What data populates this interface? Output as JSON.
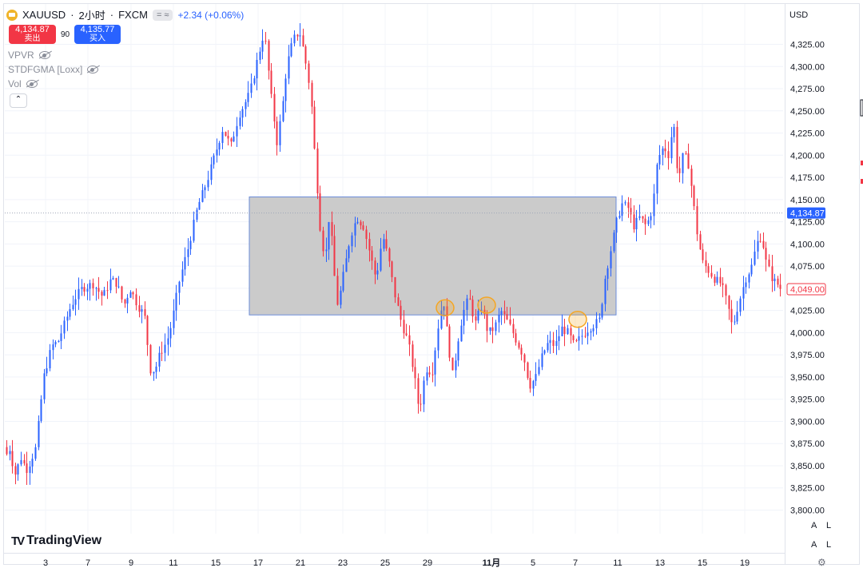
{
  "header": {
    "symbol": "XAUUSD",
    "separator": "·",
    "interval": "2小时",
    "source": "FXCM",
    "market_status": "= ≈",
    "change": "+2.34 (+0.06%)"
  },
  "trade": {
    "sell_price": "4,134.87",
    "sell_label": "卖出",
    "spread": "90",
    "buy_price": "4,135.77",
    "buy_label": "买入"
  },
  "indicators": [
    {
      "name": "VPVR"
    },
    {
      "name": "STDFGMA [Loxx]"
    },
    {
      "name": "Vol"
    }
  ],
  "currency": "USD",
  "logo_text": "TradingView",
  "logo_mark": "TV",
  "axis_buttons": {
    "auto": "A",
    "log": "L"
  },
  "colors": {
    "up": "#2962ff",
    "down": "#f23645",
    "current_price": "#2962ff",
    "marker": "#f5a623",
    "zone": "#bdbdbd"
  },
  "chart_data": {
    "type": "candlestick",
    "title": "XAUUSD · 2小时 · FXCM",
    "ylim": [
      3780,
      4345
    ],
    "y_ticks": [
      3800,
      3825,
      3850,
      3875,
      3900,
      3925,
      3950,
      3975,
      4000,
      4025,
      4050,
      4075,
      4100,
      4125,
      4150,
      4175,
      4200,
      4225,
      4250,
      4275,
      4300,
      4325
    ],
    "y_tick_labels": [
      "3,800.00",
      "3,825.00",
      "3,850.00",
      "3,875.00",
      "3,900.00",
      "3,925.00",
      "3,950.00",
      "3,975.00",
      "4,000.00",
      "4,025.00",
      "4,050.00",
      "4,075.00",
      "4,100.00",
      "4,125.00",
      "4,150.00",
      "4,175.00",
      "4,200.00",
      "4,225.00",
      "4,250.00",
      "4,275.00",
      "4,300.00",
      "4,325.00"
    ],
    "x_tick_labels": [
      "3",
      "7",
      "9",
      "11",
      "15",
      "17",
      "21",
      "23",
      "25",
      "29",
      "11月",
      "5",
      "7",
      "11",
      "13",
      "15",
      "19"
    ],
    "x_tick_bold": [
      false,
      false,
      false,
      false,
      false,
      false,
      false,
      false,
      false,
      false,
      true,
      false,
      false,
      false,
      false,
      false,
      false
    ],
    "price_path": [
      [
        0,
        3840
      ],
      [
        6,
        3882
      ],
      [
        10,
        3860
      ],
      [
        15,
        3870
      ],
      [
        22,
        3840
      ],
      [
        30,
        3860
      ],
      [
        36,
        3845
      ],
      [
        40,
        3852
      ],
      [
        48,
        3870
      ],
      [
        58,
        3950
      ],
      [
        68,
        3985
      ],
      [
        76,
        3990
      ],
      [
        86,
        4015
      ],
      [
        92,
        4030
      ],
      [
        98,
        4040
      ],
      [
        106,
        4050
      ],
      [
        120,
        4055
      ],
      [
        132,
        4040
      ],
      [
        142,
        4060
      ],
      [
        150,
        4055
      ],
      [
        158,
        4030
      ],
      [
        166,
        4050
      ],
      [
        176,
        4030
      ],
      [
        184,
        4020
      ],
      [
        192,
        3955
      ],
      [
        198,
        3960
      ],
      [
        204,
        3978
      ],
      [
        212,
        3990
      ],
      [
        218,
        4010
      ],
      [
        228,
        4060
      ],
      [
        240,
        4100
      ],
      [
        250,
        4140
      ],
      [
        262,
        4170
      ],
      [
        272,
        4200
      ],
      [
        282,
        4230
      ],
      [
        292,
        4210
      ],
      [
        302,
        4245
      ],
      [
        316,
        4270
      ],
      [
        326,
        4310
      ],
      [
        334,
        4340
      ],
      [
        342,
        4270
      ],
      [
        350,
        4215
      ],
      [
        356,
        4250
      ],
      [
        362,
        4300
      ],
      [
        370,
        4330
      ],
      [
        378,
        4340
      ],
      [
        384,
        4315
      ],
      [
        392,
        4270
      ],
      [
        398,
        4190
      ],
      [
        404,
        4120
      ],
      [
        410,
        4080
      ],
      [
        416,
        4140
      ],
      [
        420,
        4080
      ],
      [
        426,
        4030
      ],
      [
        434,
        4070
      ],
      [
        442,
        4110
      ],
      [
        450,
        4130
      ],
      [
        458,
        4120
      ],
      [
        466,
        4090
      ],
      [
        474,
        4060
      ],
      [
        482,
        4110
      ],
      [
        490,
        4080
      ],
      [
        498,
        4040
      ],
      [
        506,
        4010
      ],
      [
        514,
        3990
      ],
      [
        522,
        3950
      ],
      [
        528,
        3910
      ],
      [
        536,
        3960
      ],
      [
        544,
        3955
      ],
      [
        552,
        4010
      ],
      [
        558,
        4040
      ],
      [
        564,
        3990
      ],
      [
        570,
        3950
      ],
      [
        576,
        3990
      ],
      [
        582,
        4020
      ],
      [
        590,
        4040
      ],
      [
        598,
        4010
      ],
      [
        606,
        4030
      ],
      [
        614,
        4000
      ],
      [
        622,
        4005
      ],
      [
        630,
        4025
      ],
      [
        640,
        4010
      ],
      [
        650,
        3990
      ],
      [
        658,
        3975
      ],
      [
        666,
        3940
      ],
      [
        674,
        3950
      ],
      [
        682,
        3975
      ],
      [
        690,
        3990
      ],
      [
        698,
        3985
      ],
      [
        706,
        4005
      ],
      [
        714,
        4000
      ],
      [
        722,
        3985
      ],
      [
        730,
        3995
      ],
      [
        740,
        4005
      ],
      [
        748,
        4010
      ],
      [
        754,
        4015
      ],
      [
        760,
        4060
      ],
      [
        768,
        4095
      ],
      [
        776,
        4130
      ],
      [
        782,
        4145
      ],
      [
        790,
        4140
      ],
      [
        796,
        4120
      ],
      [
        804,
        4130
      ],
      [
        812,
        4120
      ],
      [
        820,
        4140
      ],
      [
        826,
        4195
      ],
      [
        834,
        4210
      ],
      [
        840,
        4200
      ],
      [
        846,
        4240
      ],
      [
        852,
        4170
      ],
      [
        858,
        4200
      ],
      [
        864,
        4195
      ],
      [
        870,
        4155
      ],
      [
        876,
        4110
      ],
      [
        882,
        4080
      ],
      [
        890,
        4070
      ],
      [
        898,
        4060
      ],
      [
        906,
        4055
      ],
      [
        914,
        4030
      ],
      [
        920,
        4005
      ],
      [
        928,
        4035
      ],
      [
        936,
        4060
      ],
      [
        944,
        4075
      ],
      [
        950,
        4100
      ],
      [
        956,
        4110
      ],
      [
        962,
        4080
      ],
      [
        970,
        4060
      ],
      [
        976,
        4055
      ],
      [
        980,
        4050
      ]
    ],
    "zone": {
      "x0": 312,
      "x1": 771,
      "y_top": 4153,
      "y_bottom": 4020
    },
    "markers": [
      {
        "x": 557,
        "y": 4028
      },
      {
        "x": 609,
        "y": 4031
      },
      {
        "x": 723,
        "y": 4015
      }
    ],
    "current_price": 4134.87,
    "current_price_label": "4,134.87",
    "secondary_price": 4049.0,
    "secondary_price_label": "4,049.00"
  }
}
